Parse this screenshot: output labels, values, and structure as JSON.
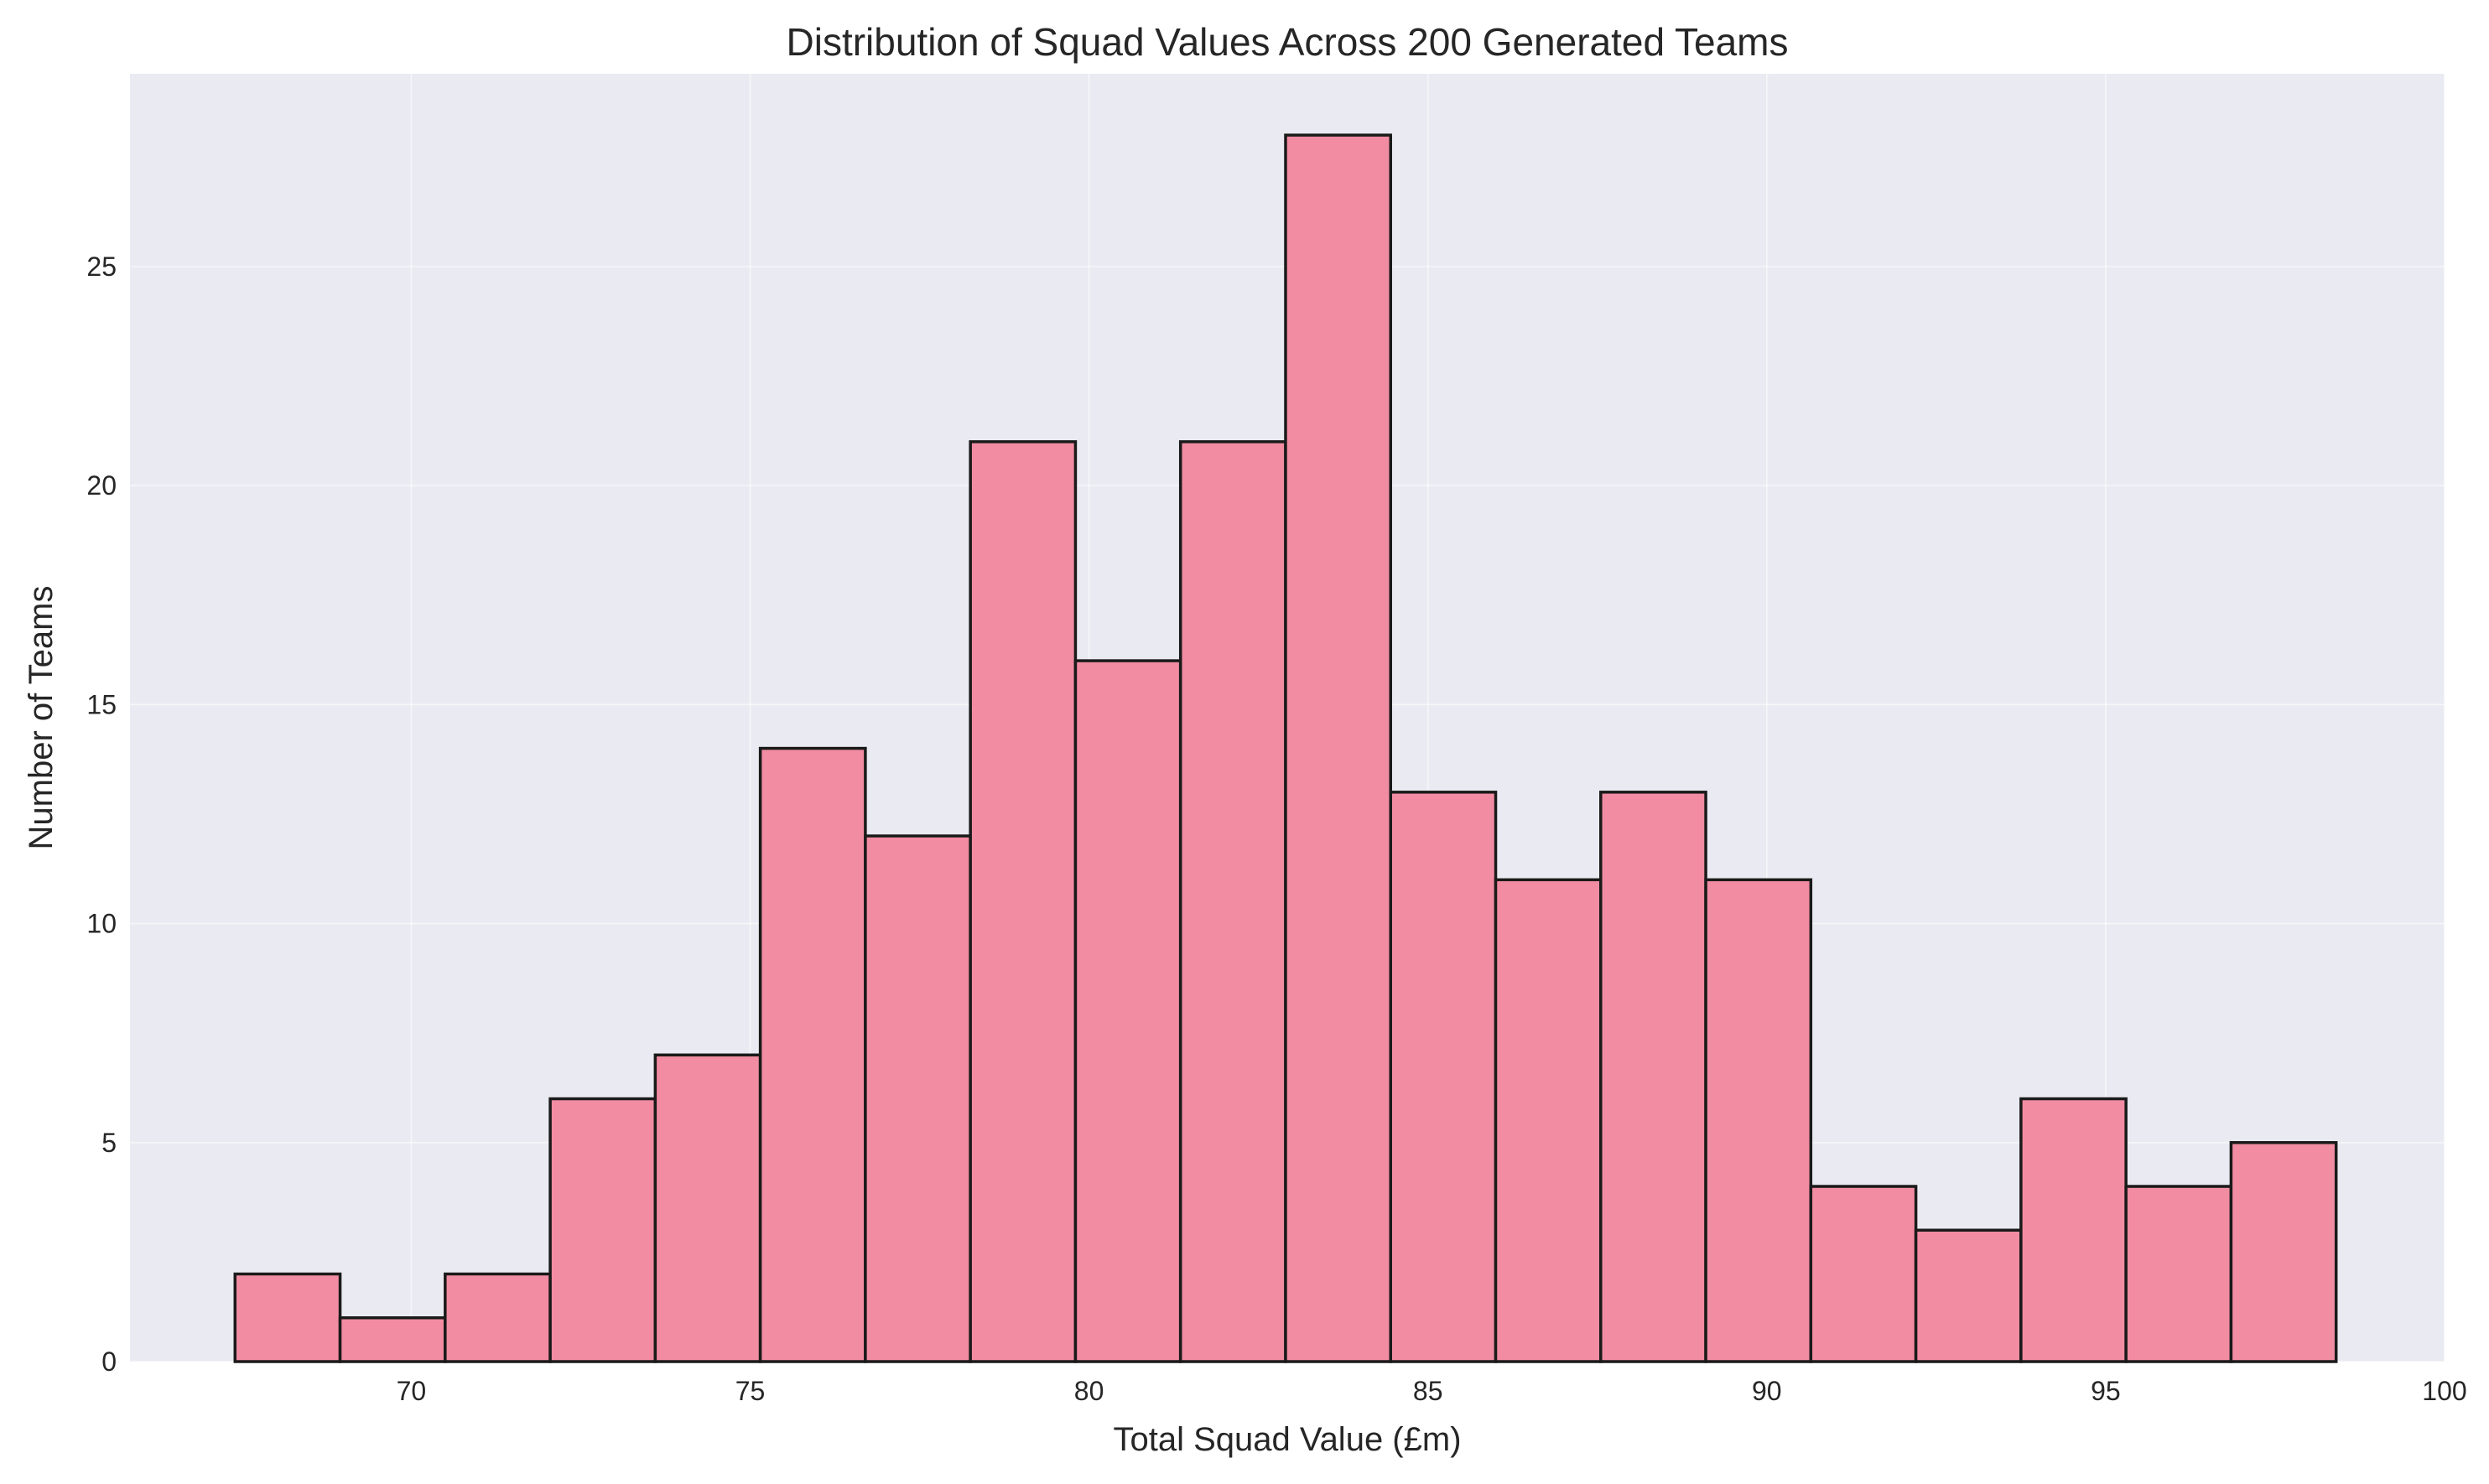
{
  "chart_data": {
    "type": "bar",
    "title": "Distribution of Squad Values Across 200 Generated Teams",
    "xlabel": "Total Squad Value (£m)",
    "ylabel": "Number of Teams",
    "bin_edges": [
      67.4,
      68.95,
      70.5,
      72.05,
      73.6,
      75.15,
      76.7,
      78.25,
      79.8,
      81.35,
      82.9,
      84.45,
      86.0,
      87.55,
      89.1,
      90.65,
      92.2,
      93.75,
      95.3,
      96.85,
      98.4
    ],
    "values": [
      2,
      1,
      2,
      6,
      7,
      14,
      12,
      21,
      16,
      21,
      28,
      13,
      11,
      13,
      11,
      4,
      3,
      6,
      4,
      5
    ],
    "xlim": [
      65.85,
      100.0
    ],
    "ylim": [
      0,
      29.4
    ],
    "xticks": [
      "70",
      "75",
      "80",
      "85",
      "90",
      "95",
      "100"
    ],
    "yticks": [
      "0",
      "5",
      "10",
      "15",
      "20",
      "25"
    ],
    "grid": true,
    "colors": {
      "bar_fill": "#f28ca2",
      "bar_edge": "#1a1a1a",
      "plot_bg": "#eaeaf2"
    }
  }
}
